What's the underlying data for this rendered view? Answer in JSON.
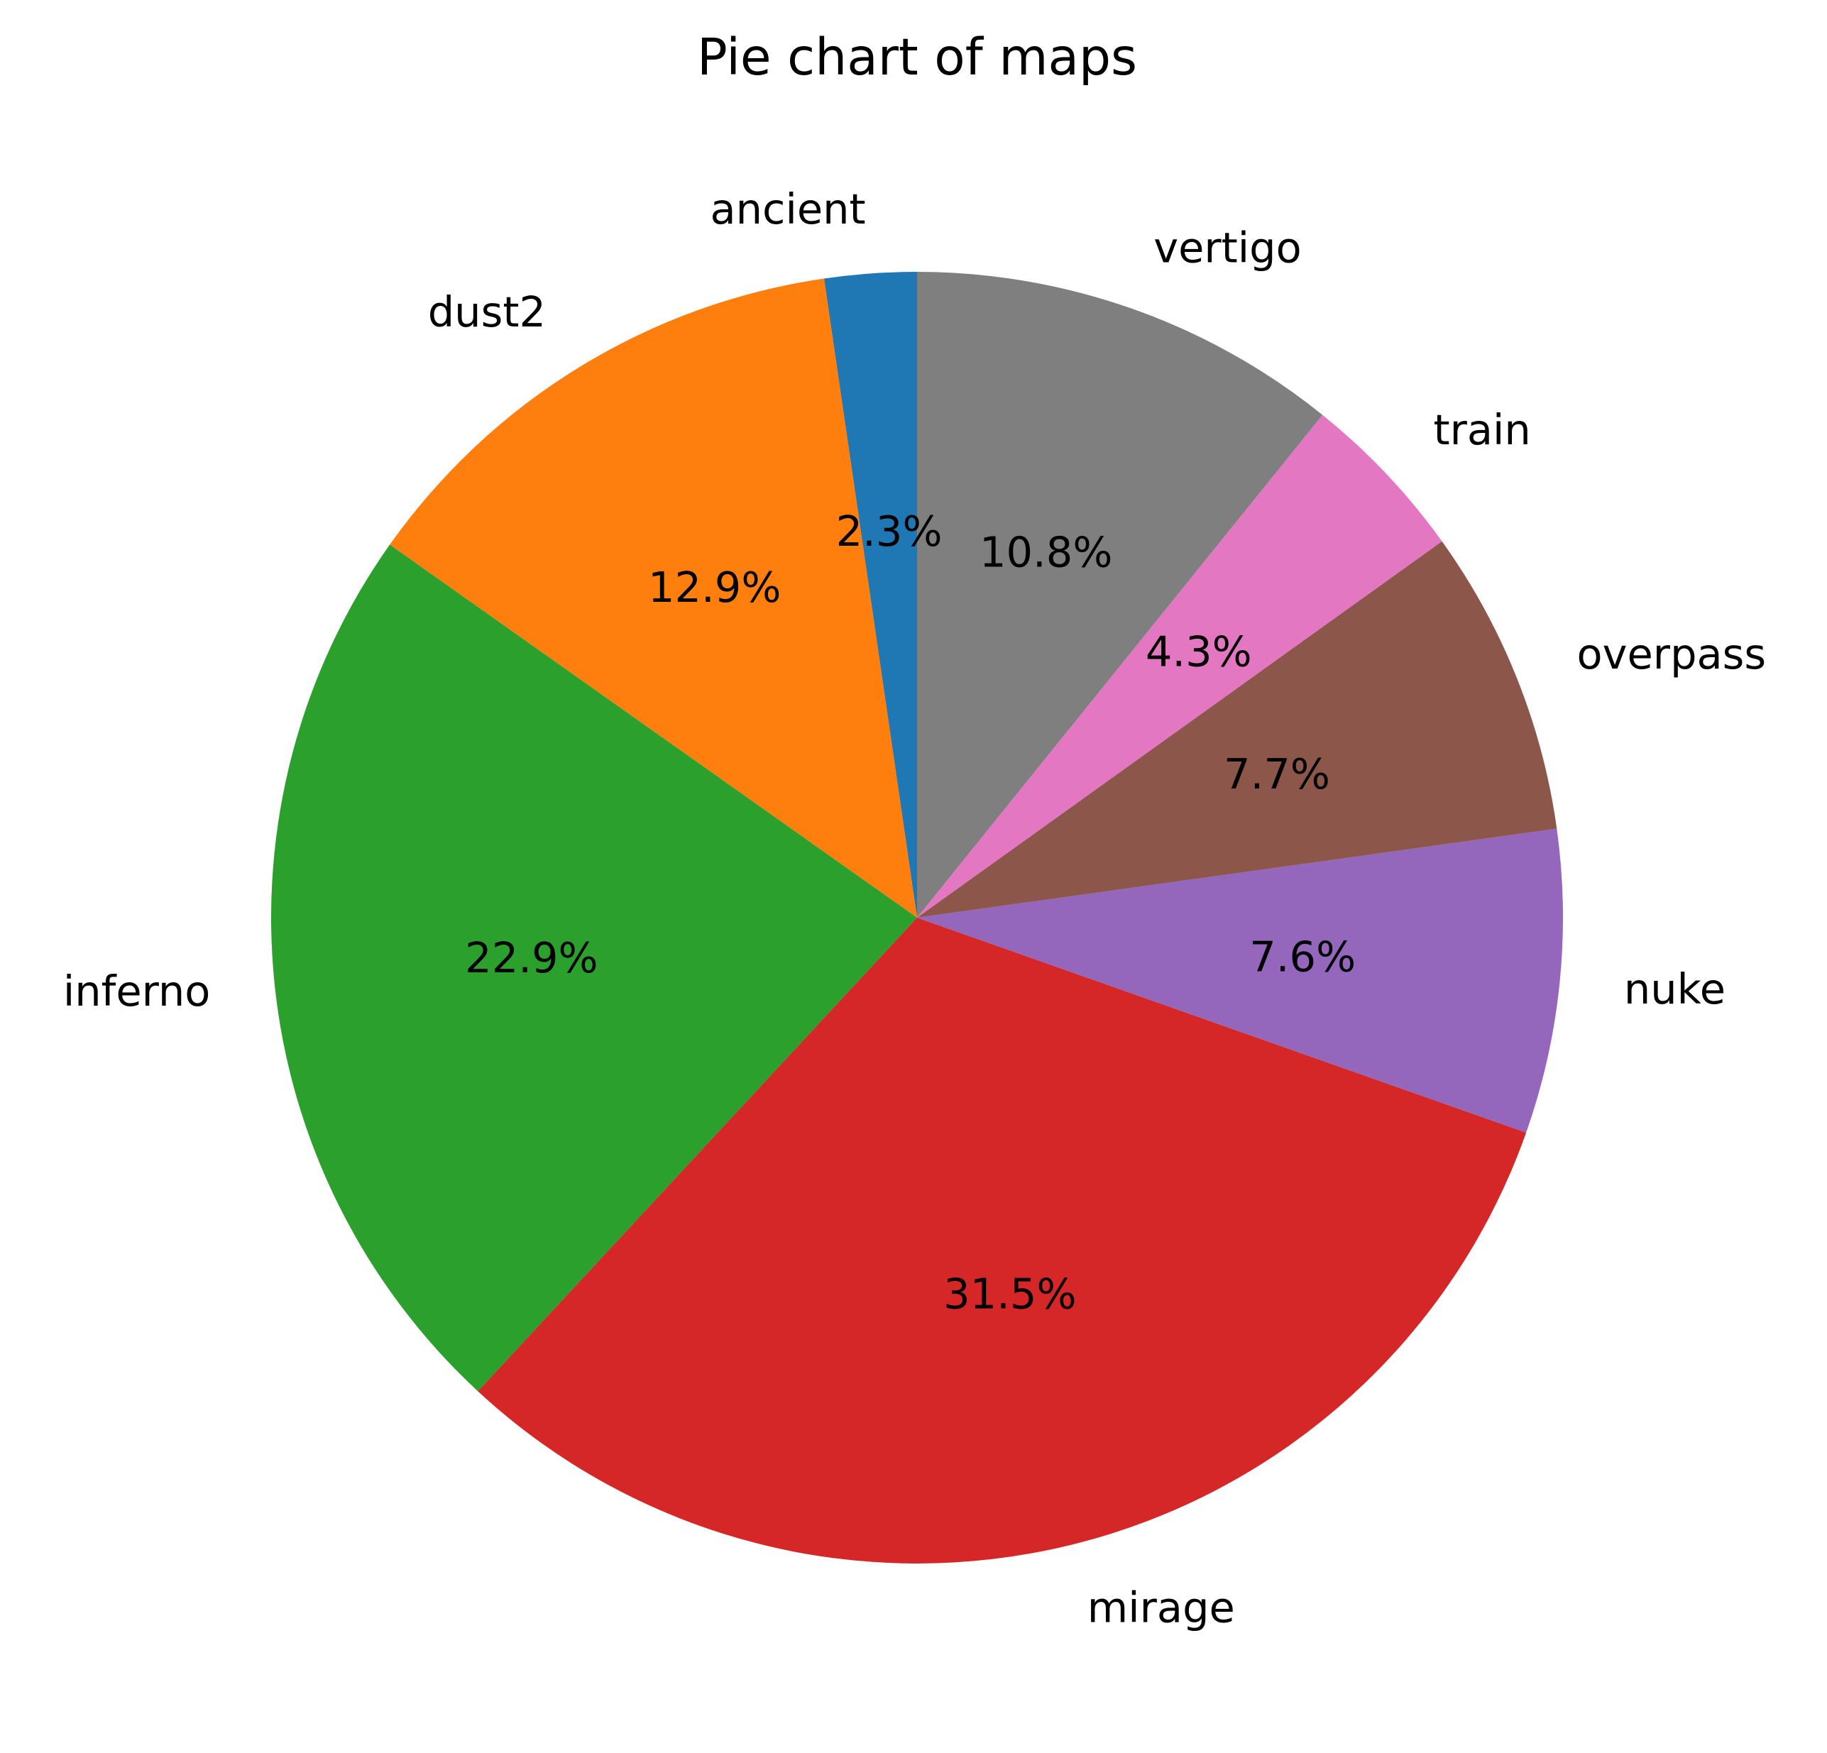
{
  "chart_data": {
    "type": "pie",
    "title": "Pie chart of maps",
    "start_angle_deg": 90,
    "direction": "counterclockwise",
    "slices": [
      {
        "label": "ancient",
        "value": 2.3,
        "pct_label": "2.3%",
        "color": "#1f77b4"
      },
      {
        "label": "dust2",
        "value": 12.9,
        "pct_label": "12.9%",
        "color": "#ff7f0e"
      },
      {
        "label": "inferno",
        "value": 22.9,
        "pct_label": "22.9%",
        "color": "#2ca02c"
      },
      {
        "label": "mirage",
        "value": 31.5,
        "pct_label": "31.5%",
        "color": "#d62728"
      },
      {
        "label": "nuke",
        "value": 7.6,
        "pct_label": "7.6%",
        "color": "#9467bd"
      },
      {
        "label": "overpass",
        "value": 7.7,
        "pct_label": "7.7%",
        "color": "#8c564b"
      },
      {
        "label": "train",
        "value": 4.3,
        "pct_label": "4.3%",
        "color": "#e377c2"
      },
      {
        "label": "vertigo",
        "value": 10.8,
        "pct_label": "10.8%",
        "color": "#7f7f7f"
      }
    ]
  }
}
